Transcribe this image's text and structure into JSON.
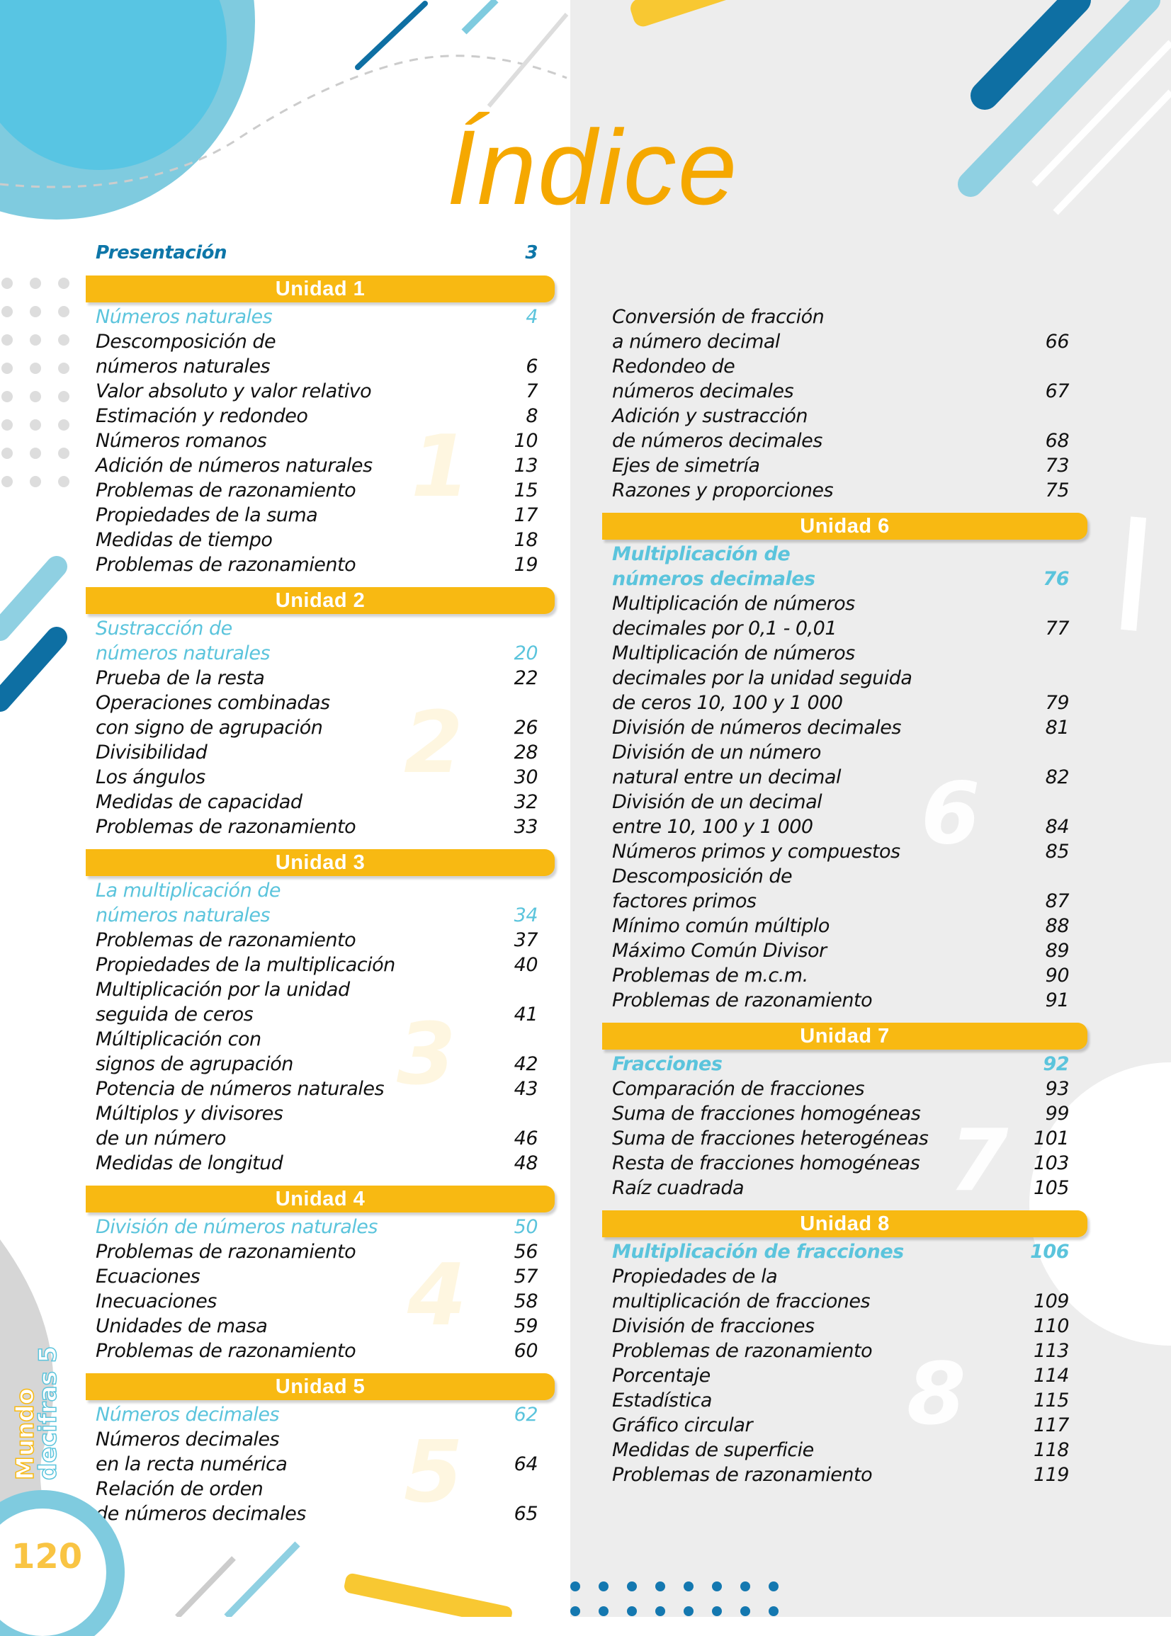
{
  "title": "Índice",
  "colors": {
    "accent": "#f8b912",
    "heading_blue": "#0d76a8",
    "section_blue": "#5bc4dc",
    "title_orange": "#f5a800"
  },
  "presentation": {
    "label": "Presentación",
    "page": "3"
  },
  "left_column": [
    {
      "unit": "Unidad 1",
      "entries": [
        {
          "lines": [
            "Números naturales"
          ],
          "page": "4",
          "section": true
        },
        {
          "lines": [
            "Descomposición de",
            "números naturales"
          ],
          "page": "6"
        },
        {
          "lines": [
            "Valor absoluto y valor relativo"
          ],
          "page": "7"
        },
        {
          "lines": [
            "Estimación y redondeo"
          ],
          "page": "8"
        },
        {
          "lines": [
            "Números romanos"
          ],
          "page": "10"
        },
        {
          "lines": [
            "Adición de números naturales"
          ],
          "page": "13"
        },
        {
          "lines": [
            "Problemas de razonamiento"
          ],
          "page": "15"
        },
        {
          "lines": [
            "Propiedades de la suma"
          ],
          "page": "17"
        },
        {
          "lines": [
            "Medidas de tiempo"
          ],
          "page": "18"
        },
        {
          "lines": [
            "Problemas de razonamiento"
          ],
          "page": "19"
        }
      ]
    },
    {
      "unit": "Unidad 2",
      "entries": [
        {
          "lines": [
            "Sustracción de",
            "números naturales"
          ],
          "page": "20",
          "section": true
        },
        {
          "lines": [
            "Prueba de la resta"
          ],
          "page": "22"
        },
        {
          "lines": [
            "Operaciones combinadas",
            "con signo de agrupación"
          ],
          "page": "26"
        },
        {
          "lines": [
            "Divisibilidad"
          ],
          "page": "28"
        },
        {
          "lines": [
            "Los ángulos"
          ],
          "page": "30"
        },
        {
          "lines": [
            "Medidas de capacidad"
          ],
          "page": "32"
        },
        {
          "lines": [
            "Problemas de razonamiento"
          ],
          "page": "33"
        }
      ]
    },
    {
      "unit": "Unidad 3",
      "entries": [
        {
          "lines": [
            "La multiplicación de",
            "números naturales"
          ],
          "page": "34",
          "section": true
        },
        {
          "lines": [
            "Problemas de razonamiento"
          ],
          "page": "37"
        },
        {
          "lines": [
            "Propiedades de la multiplicación"
          ],
          "page": "40"
        },
        {
          "lines": [
            "Multiplicación por la unidad",
            "seguida de ceros"
          ],
          "page": "41"
        },
        {
          "lines": [
            "Múltiplicación con",
            "signos de agrupación"
          ],
          "page": "42"
        },
        {
          "lines": [
            "Potencia de números naturales"
          ],
          "page": "43"
        },
        {
          "lines": [
            "Múltiplos y divisores",
            "de un número"
          ],
          "page": "46"
        },
        {
          "lines": [
            "Medidas de longitud"
          ],
          "page": "48"
        }
      ]
    },
    {
      "unit": "Unidad 4",
      "entries": [
        {
          "lines": [
            "División de números naturales"
          ],
          "page": "50",
          "section": true
        },
        {
          "lines": [
            "Problemas de razonamiento"
          ],
          "page": "56"
        },
        {
          "lines": [
            "Ecuaciones"
          ],
          "page": "57"
        },
        {
          "lines": [
            "Inecuaciones"
          ],
          "page": "58"
        },
        {
          "lines": [
            "Unidades de masa"
          ],
          "page": "59"
        },
        {
          "lines": [
            "Problemas de razonamiento"
          ],
          "page": "60"
        }
      ]
    },
    {
      "unit": "Unidad 5",
      "entries": [
        {
          "lines": [
            "Números decimales"
          ],
          "page": "62",
          "section": true
        },
        {
          "lines": [
            "Números decimales",
            "en la recta numérica"
          ],
          "page": "64"
        },
        {
          "lines": [
            "Relación de orden",
            "de números decimales"
          ],
          "page": "65"
        }
      ]
    }
  ],
  "right_column": [
    {
      "unit": "",
      "entries": [
        {
          "lines": [
            "Conversión de fracción",
            "a número decimal"
          ],
          "page": "66"
        },
        {
          "lines": [
            "Redondeo de",
            "números decimales"
          ],
          "page": "67"
        },
        {
          "lines": [
            "Adición y sustracción",
            "de números decimales"
          ],
          "page": "68"
        },
        {
          "lines": [
            "Ejes de simetría"
          ],
          "page": "73"
        },
        {
          "lines": [
            "Razones y proporciones"
          ],
          "page": "75"
        }
      ]
    },
    {
      "unit": "Unidad 6",
      "entries": [
        {
          "lines": [
            "Multiplicación de",
            "números decimales"
          ],
          "page": "76",
          "section": true
        },
        {
          "lines": [
            "Multiplicación de números",
            "decimales por 0,1 - 0,01"
          ],
          "page": "77"
        },
        {
          "lines": [
            "Multiplicación de números",
            "decimales por la unidad seguida",
            "de ceros 10, 100 y 1 000"
          ],
          "page": "79"
        },
        {
          "lines": [
            "División de números decimales"
          ],
          "page": "81"
        },
        {
          "lines": [
            "División de un número",
            "natural entre un decimal"
          ],
          "page": "82"
        },
        {
          "lines": [
            "División de un decimal",
            "entre 10, 100 y 1 000"
          ],
          "page": "84"
        },
        {
          "lines": [
            "Números primos y compuestos"
          ],
          "page": "85"
        },
        {
          "lines": [
            "Descomposición de",
            "factores primos"
          ],
          "page": "87"
        },
        {
          "lines": [
            "Mínimo común múltiplo"
          ],
          "page": "88"
        },
        {
          "lines": [
            "Máximo Común Divisor"
          ],
          "page": "89"
        },
        {
          "lines": [
            "Problemas de m.c.m."
          ],
          "page": "90"
        },
        {
          "lines": [
            "Problemas de razonamiento"
          ],
          "page": "91"
        }
      ]
    },
    {
      "unit": "Unidad 7",
      "entries": [
        {
          "lines": [
            "Fracciones"
          ],
          "page": "92",
          "section": true
        },
        {
          "lines": [
            "Comparación de fracciones"
          ],
          "page": "93"
        },
        {
          "lines": [
            "Suma de fracciones homogéneas"
          ],
          "page": "99"
        },
        {
          "lines": [
            "Suma de fracciones heterogéneas"
          ],
          "page": "101"
        },
        {
          "lines": [
            "Resta de fracciones homogéneas"
          ],
          "page": "103"
        },
        {
          "lines": [
            "Raíz cuadrada"
          ],
          "page": "105"
        }
      ]
    },
    {
      "unit": "Unidad 8",
      "entries": [
        {
          "lines": [
            "Multiplicación de fracciones"
          ],
          "page": "106",
          "section": true
        },
        {
          "lines": [
            "Propiedades de la",
            "multiplicación de fracciones"
          ],
          "page": "109"
        },
        {
          "lines": [
            "División de fracciones"
          ],
          "page": "110"
        },
        {
          "lines": [
            "Problemas de razonamiento"
          ],
          "page": "113"
        },
        {
          "lines": [
            "Porcentaje"
          ],
          "page": "114"
        },
        {
          "lines": [
            "Estadística"
          ],
          "page": "115"
        },
        {
          "lines": [
            "Gráfico circular"
          ],
          "page": "117"
        },
        {
          "lines": [
            "Medidas de superficie"
          ],
          "page": "118"
        },
        {
          "lines": [
            "Problemas de razonamiento"
          ],
          "page": "119"
        }
      ]
    }
  ],
  "watermark_numbers": [
    "1",
    "2",
    "3",
    "4",
    "5",
    "6",
    "7",
    "8"
  ],
  "footer": {
    "page_number": "120",
    "logo_line1": "Mundo",
    "logo_line2": "decifras 5"
  }
}
